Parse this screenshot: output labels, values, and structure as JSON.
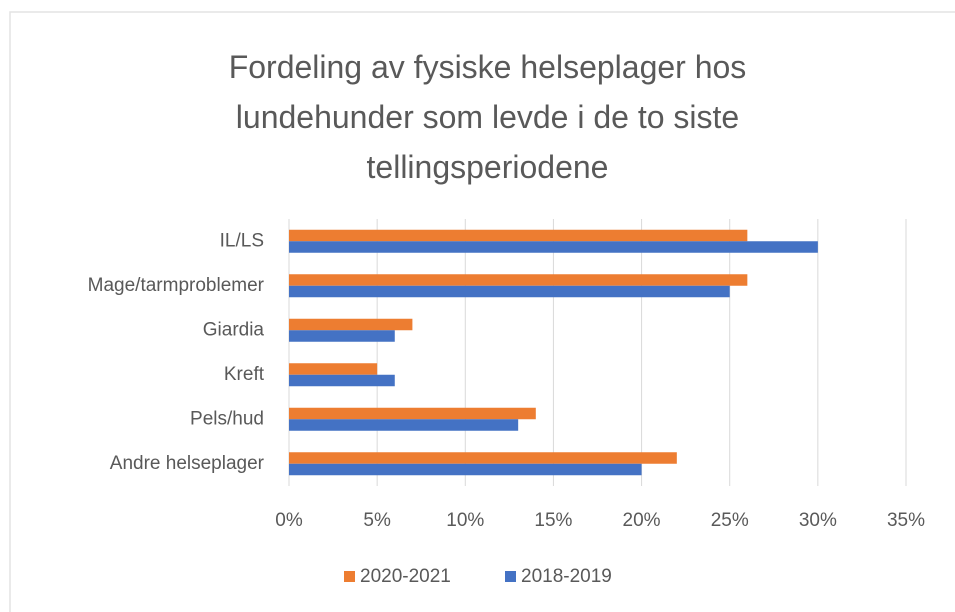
{
  "chart_data": {
    "type": "barh",
    "title": "Fordeling av fysiske helseplager hos\nlundehunder  som levde i de to siste\ntellingsperiodene",
    "categories": [
      "IL/LS",
      "Mage/tarmproblemer",
      "Giardia",
      "Kreft",
      "Pels/hud",
      "Andre helseplager"
    ],
    "series": [
      {
        "name": "2020-2021",
        "color": "#ed7d31",
        "values": [
          26,
          26,
          7,
          5,
          14,
          22
        ]
      },
      {
        "name": "2018-2019",
        "color": "#4472c4",
        "values": [
          30,
          25,
          6,
          6,
          13,
          20
        ]
      }
    ],
    "xlim": [
      0,
      35
    ],
    "xticks": [
      {
        "value": 0,
        "label": "0%"
      },
      {
        "value": 5,
        "label": "5%"
      },
      {
        "value": 10,
        "label": "10%"
      },
      {
        "value": 15,
        "label": "15%"
      },
      {
        "value": 20,
        "label": "20%"
      },
      {
        "value": 25,
        "label": "25%"
      },
      {
        "value": 30,
        "label": "30%"
      },
      {
        "value": 35,
        "label": "35%"
      }
    ],
    "grid": true,
    "legend": "bottom"
  }
}
